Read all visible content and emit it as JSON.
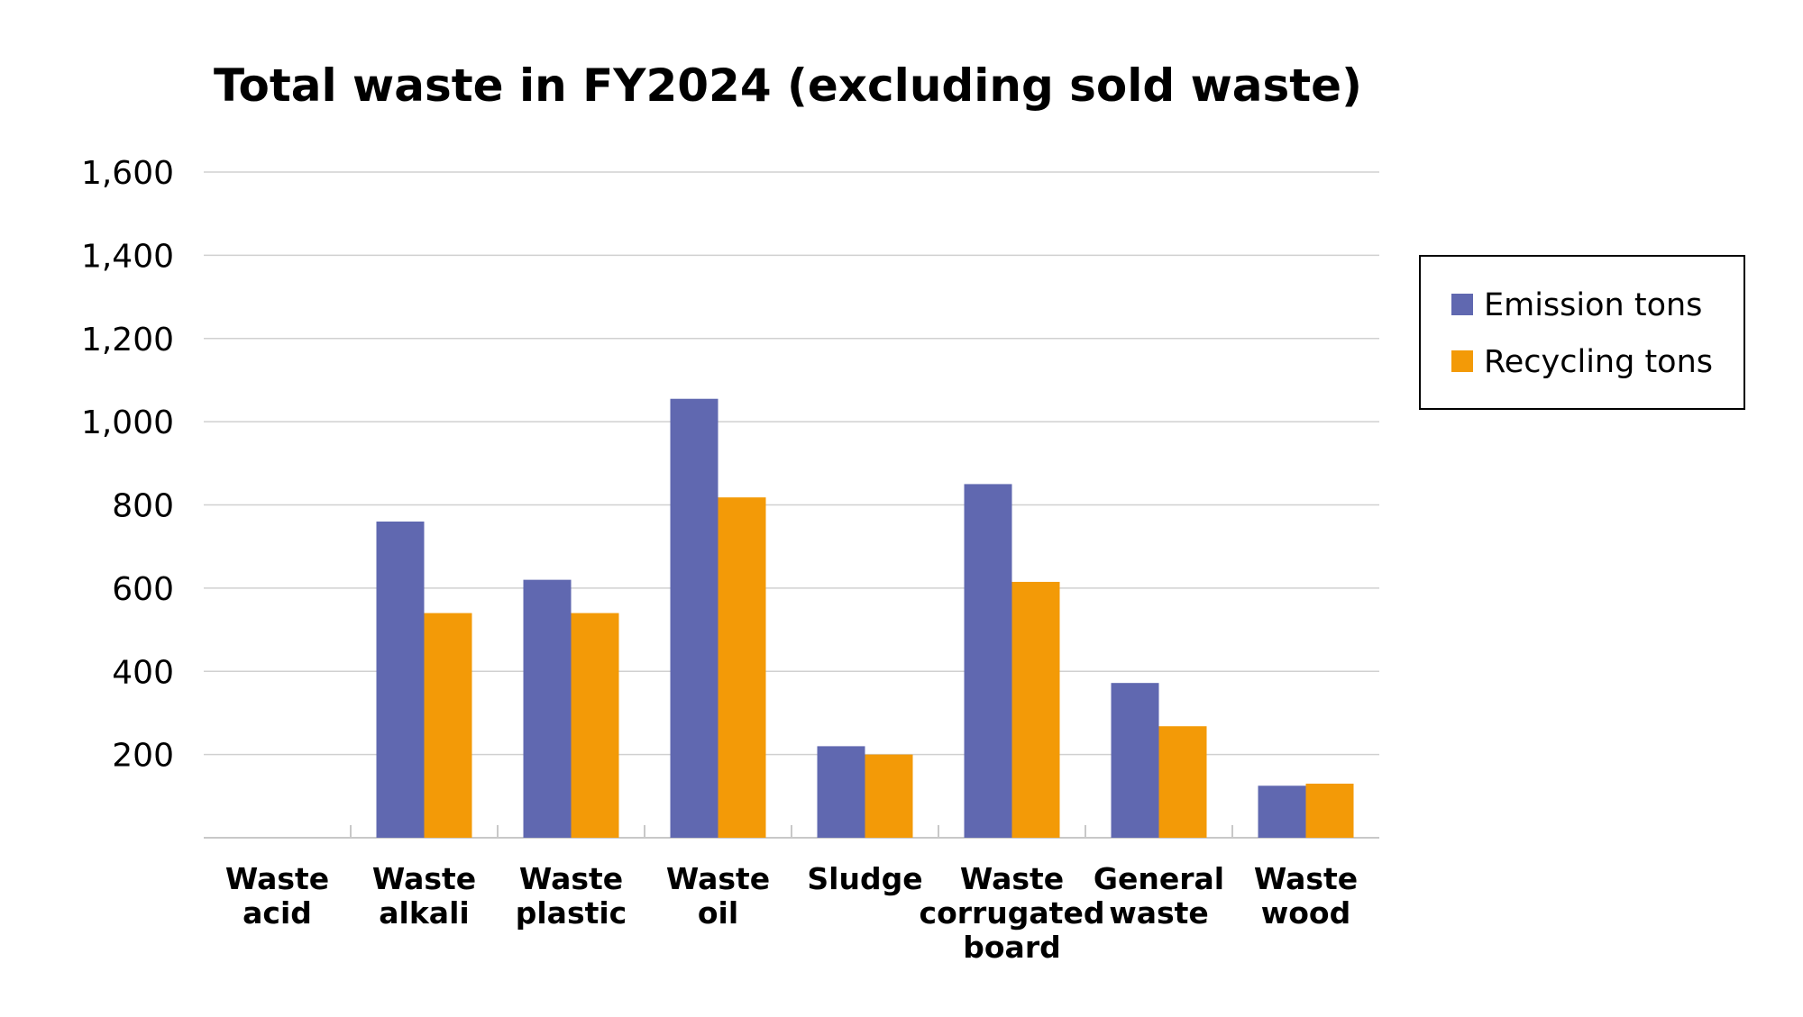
{
  "chart_data": {
    "type": "bar",
    "title": "Total waste in FY2024 (excluding sold waste)",
    "xlabel": "",
    "ylabel": "",
    "ylim": [
      0,
      1600
    ],
    "yticks": [
      200,
      400,
      600,
      800,
      1000,
      1200,
      1400,
      1600
    ],
    "ytick_labels": [
      "200",
      "400",
      "600",
      "800",
      "1,000",
      "1,200",
      "1,400",
      "1,600"
    ],
    "grid": true,
    "legend_position": "right",
    "categories": [
      [
        "Waste",
        "acid"
      ],
      [
        "Waste",
        "alkali"
      ],
      [
        "Waste",
        "plastic"
      ],
      [
        "Waste",
        "oil"
      ],
      [
        "Sludge"
      ],
      [
        "Waste",
        "corrugated",
        "board"
      ],
      [
        "General",
        "waste"
      ],
      [
        "Waste",
        "wood"
      ]
    ],
    "series": [
      {
        "name": "Emission tons",
        "color": "#6068b0",
        "values": [
          0,
          760,
          620,
          1055,
          220,
          850,
          372,
          125
        ]
      },
      {
        "name": "Recycling tons",
        "color": "#f39a07",
        "values": [
          0,
          540,
          540,
          818,
          200,
          615,
          268,
          130
        ]
      }
    ]
  }
}
